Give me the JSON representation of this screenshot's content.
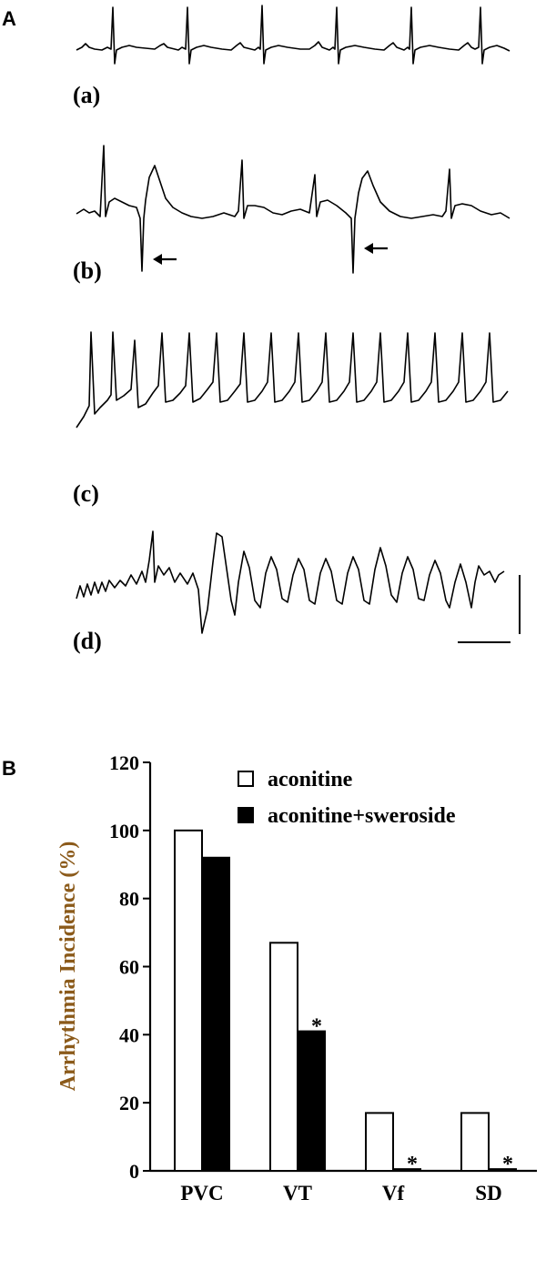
{
  "panels": {
    "a_letter": "A",
    "b_letter": "B"
  },
  "ecg_labels": [
    "(a)",
    "(b)",
    "(c)",
    "(d)"
  ],
  "chart_data": {
    "type": "bar",
    "title": "",
    "xlabel": "",
    "ylabel": "Arrhythmia Incidence (%)",
    "ylim": [
      0,
      120
    ],
    "yticks": [
      0,
      20,
      40,
      60,
      80,
      100,
      120
    ],
    "categories": [
      "PVC",
      "VT",
      "Vf",
      "SD"
    ],
    "series": [
      {
        "name": "aconitine",
        "values": [
          100,
          67,
          17,
          17
        ],
        "color": "#ffffff"
      },
      {
        "name": "aconitine+sweroside",
        "values": [
          92,
          41,
          0.5,
          0.5
        ],
        "color": "#000000"
      }
    ],
    "annotations": [
      {
        "category": "VT",
        "series": "aconitine+sweroside",
        "text": "*"
      },
      {
        "category": "Vf",
        "series": "aconitine+sweroside",
        "text": "*"
      },
      {
        "category": "SD",
        "series": "aconitine+sweroside",
        "text": "*"
      }
    ],
    "legend_position": "top-right",
    "grid": false,
    "axis_color": "#000000",
    "label_color": "#8B5A1A"
  }
}
